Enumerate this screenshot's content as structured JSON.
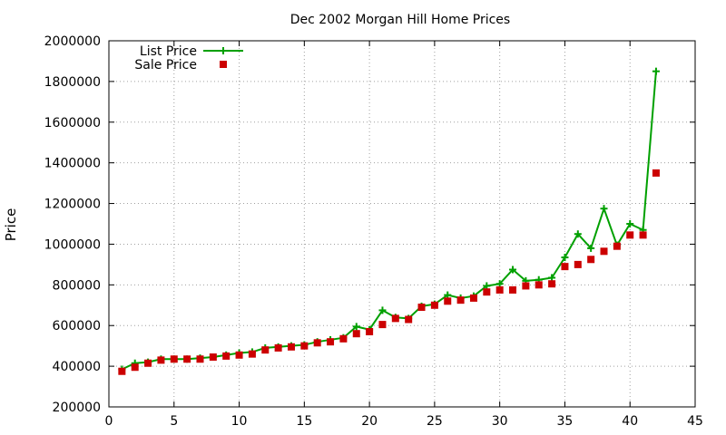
{
  "chart_data": {
    "type": "line",
    "title": "Dec 2002 Morgan Hill Home Prices",
    "xlabel": "",
    "ylabel": "Price",
    "xlim": [
      0,
      45
    ],
    "ylim": [
      200000,
      2000000
    ],
    "xticks": [
      0,
      5,
      10,
      15,
      20,
      25,
      30,
      35,
      40,
      45
    ],
    "yticks": [
      200000,
      400000,
      600000,
      800000,
      1000000,
      1200000,
      1400000,
      1600000,
      1800000,
      2000000
    ],
    "grid": true,
    "legend_position": "top-left",
    "x": [
      1,
      2,
      3,
      4,
      5,
      6,
      7,
      8,
      9,
      10,
      11,
      12,
      13,
      14,
      15,
      16,
      17,
      18,
      19,
      20,
      21,
      22,
      23,
      24,
      25,
      26,
      27,
      28,
      29,
      30,
      31,
      32,
      33,
      34,
      35,
      36,
      37,
      38,
      39,
      40,
      41,
      42
    ],
    "series": [
      {
        "name": "List Price",
        "style": "linespoints",
        "color": "#00a000",
        "marker": "plus",
        "values": [
          385000,
          415000,
          420000,
          435000,
          435000,
          435000,
          440000,
          445000,
          455000,
          465000,
          470000,
          490000,
          495000,
          500000,
          505000,
          520000,
          530000,
          540000,
          595000,
          580000,
          675000,
          640000,
          635000,
          695000,
          705000,
          750000,
          735000,
          745000,
          795000,
          805000,
          875000,
          820000,
          825000,
          835000,
          935000,
          1050000,
          980000,
          1175000,
          995000,
          1100000,
          1070000,
          1850000
        ]
      },
      {
        "name": "Sale Price",
        "style": "points",
        "color": "#cc0000",
        "marker": "square",
        "values": [
          375000,
          395000,
          415000,
          430000,
          435000,
          435000,
          435000,
          445000,
          450000,
          455000,
          460000,
          480000,
          490000,
          495000,
          500000,
          515000,
          520000,
          535000,
          560000,
          570000,
          605000,
          635000,
          630000,
          690000,
          700000,
          720000,
          725000,
          735000,
          765000,
          775000,
          775000,
          795000,
          800000,
          805000,
          890000,
          900000,
          925000,
          965000,
          990000,
          1045000,
          1045000,
          1350000
        ]
      }
    ]
  }
}
